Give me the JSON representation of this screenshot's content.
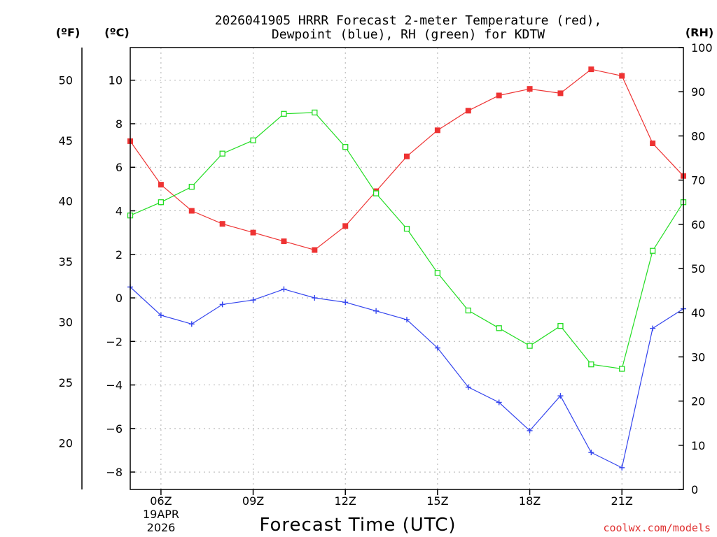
{
  "chart_data": {
    "type": "line",
    "title_line1": "2026041905 HRRR Forecast 2-meter Temperature (red),",
    "title_line2": "Dewpoint (blue), RH (green) for KDTW",
    "xlabel": "Forecast Time (UTC)",
    "credit": "coolwx.com/models",
    "unit_f": "(ºF)",
    "unit_c": "(ºC)",
    "unit_rh": "(RH)",
    "date_line1": "19APR",
    "date_line2": "2026",
    "x_hours": [
      5,
      6,
      7,
      8,
      9,
      10,
      11,
      12,
      13,
      14,
      15,
      16,
      17,
      18,
      19,
      20,
      21,
      22,
      23
    ],
    "xlim": [
      5,
      23
    ],
    "x_ticks": [
      {
        "hour": 6,
        "label": "06Z"
      },
      {
        "hour": 9,
        "label": "09Z"
      },
      {
        "hour": 12,
        "label": "12Z"
      },
      {
        "hour": 15,
        "label": "15Z"
      },
      {
        "hour": 18,
        "label": "18Z"
      },
      {
        "hour": 21,
        "label": "21Z"
      }
    ],
    "ylim_c": [
      -8.8,
      11.5
    ],
    "y_ticks_c": [
      "10",
      "8",
      "6",
      "4",
      "2",
      "0",
      "−2",
      "−4",
      "−6",
      "−8"
    ],
    "y_ticks_f": [
      "50",
      "45",
      "40",
      "35",
      "30",
      "25",
      "20"
    ],
    "ylim_rh": [
      0,
      100
    ],
    "y_ticks_rh": [
      "100",
      "90",
      "80",
      "70",
      "60",
      "50",
      "40",
      "30",
      "20",
      "10",
      "0"
    ],
    "series": [
      {
        "name": "Temperature",
        "color": "#ee3333",
        "marker": "filled-square",
        "axis": "celsius",
        "values": [
          7.2,
          5.2,
          4.0,
          3.4,
          3.0,
          2.6,
          2.2,
          3.3,
          4.9,
          6.5,
          7.7,
          8.6,
          9.3,
          9.6,
          9.4,
          10.5,
          10.2,
          7.1,
          5.6
        ]
      },
      {
        "name": "Dewpoint",
        "color": "#3344ee",
        "marker": "plus",
        "axis": "celsius",
        "values": [
          0.5,
          -0.8,
          -1.2,
          -0.3,
          -0.1,
          0.4,
          0.0,
          -0.2,
          -0.6,
          -1.0,
          -2.3,
          -4.1,
          -4.8,
          -6.1,
          -4.5,
          -7.1,
          -7.8,
          -1.4,
          -0.5
        ]
      },
      {
        "name": "RH",
        "color": "#22dd22",
        "marker": "hollow-square",
        "axis": "rh",
        "values": [
          62,
          65,
          68.5,
          76,
          79,
          85,
          85.3,
          77.5,
          67,
          59,
          49,
          40.5,
          36.5,
          32.5,
          37,
          28.3,
          27.3,
          54,
          65
        ]
      }
    ]
  }
}
